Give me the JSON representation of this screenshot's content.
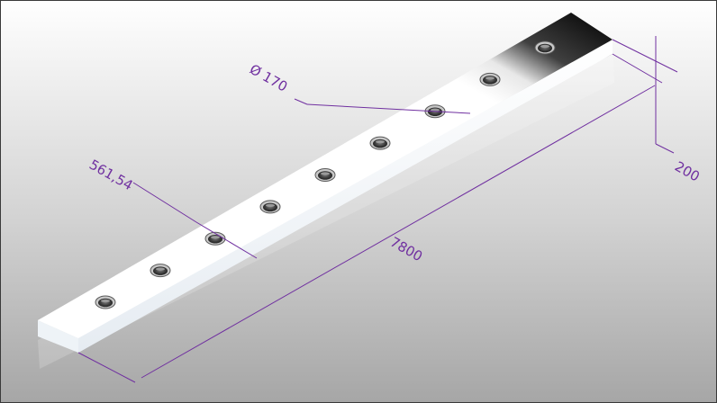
{
  "drawing": {
    "hole_count": 9,
    "dim_color": "#7030a0",
    "labels": {
      "hole_diameter": "Ø 170",
      "hole_pitch": "561,54",
      "length": "7800",
      "thickness": "200"
    }
  }
}
